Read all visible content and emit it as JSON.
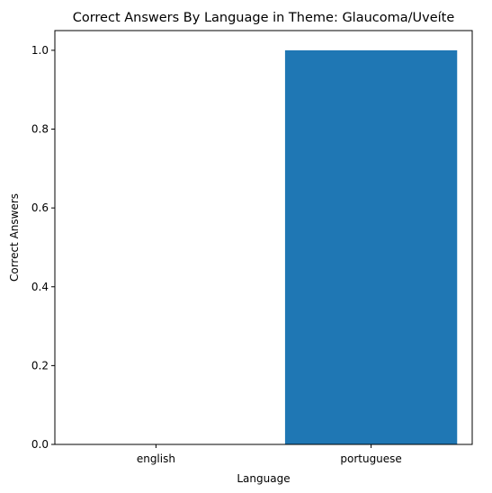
{
  "chart_data": {
    "type": "bar",
    "title": "Correct Answers By Language in Theme: Glaucoma/Uveíte",
    "xlabel": "Language",
    "ylabel": "Correct Answers",
    "categories": [
      "english",
      "portuguese"
    ],
    "values": [
      0.0,
      1.0
    ],
    "ylim": [
      0,
      1.05
    ],
    "yticks": [
      "0.0",
      "0.2",
      "0.4",
      "0.6",
      "0.8",
      "1.0"
    ],
    "grid": false,
    "legend": "none",
    "bar_color": "#1f77b4"
  }
}
